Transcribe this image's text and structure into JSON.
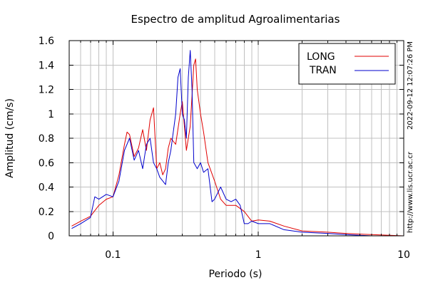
{
  "chart_data": {
    "type": "line",
    "title": "Espectro de amplitud Agroalimentarias",
    "xlabel": "Periodo (s)",
    "ylabel": "Amplitud (cm/s)",
    "x_scale": "log",
    "xlim": [
      0.05,
      10
    ],
    "ylim": [
      0,
      1.6
    ],
    "x_ticks": [
      0.1,
      1,
      10
    ],
    "x_tick_labels": [
      "0.1",
      "1",
      "10"
    ],
    "y_ticks": [
      0,
      0.2,
      0.4,
      0.6,
      0.8,
      1,
      1.2,
      1.4,
      1.6
    ],
    "y_tick_labels": [
      "0",
      "0.2",
      "0.4",
      "0.6",
      "0.8",
      "1",
      "1.2",
      "1.4",
      "1.6"
    ],
    "grid": true,
    "legend_position": "top-right",
    "timestamp": "2022-09-12 12:07:26 PM",
    "url": "http://www.lis.ucr.ac.cr",
    "series": [
      {
        "name": "LONG",
        "color": "#e00000",
        "x": [
          0.052,
          0.06,
          0.07,
          0.08,
          0.09,
          0.1,
          0.11,
          0.12,
          0.125,
          0.13,
          0.14,
          0.15,
          0.16,
          0.17,
          0.18,
          0.19,
          0.2,
          0.21,
          0.22,
          0.23,
          0.24,
          0.25,
          0.27,
          0.29,
          0.3,
          0.32,
          0.34,
          0.36,
          0.37,
          0.38,
          0.4,
          0.42,
          0.45,
          0.5,
          0.55,
          0.6,
          0.7,
          0.8,
          0.9,
          1.0,
          1.2,
          1.5,
          2.0,
          3.0,
          4.0,
          6.0,
          10.0
        ],
        "y": [
          0.08,
          0.12,
          0.16,
          0.25,
          0.3,
          0.32,
          0.5,
          0.75,
          0.85,
          0.83,
          0.65,
          0.72,
          0.87,
          0.7,
          0.95,
          1.05,
          0.55,
          0.6,
          0.5,
          0.55,
          0.72,
          0.8,
          0.75,
          1.0,
          1.1,
          0.7,
          0.9,
          1.4,
          1.45,
          1.2,
          1.0,
          0.85,
          0.6,
          0.45,
          0.3,
          0.25,
          0.25,
          0.2,
          0.12,
          0.13,
          0.12,
          0.08,
          0.04,
          0.03,
          0.02,
          0.01,
          0.0
        ]
      },
      {
        "name": "TRAN",
        "color": "#0000cc",
        "x": [
          0.052,
          0.06,
          0.07,
          0.075,
          0.08,
          0.09,
          0.1,
          0.11,
          0.12,
          0.13,
          0.14,
          0.15,
          0.16,
          0.17,
          0.18,
          0.19,
          0.2,
          0.21,
          0.22,
          0.23,
          0.24,
          0.25,
          0.27,
          0.28,
          0.29,
          0.3,
          0.31,
          0.32,
          0.33,
          0.34,
          0.35,
          0.36,
          0.38,
          0.4,
          0.42,
          0.45,
          0.48,
          0.5,
          0.55,
          0.6,
          0.65,
          0.7,
          0.75,
          0.8,
          0.85,
          0.9,
          1.0,
          1.2,
          1.5,
          2.0,
          3.0,
          4.0,
          6.0,
          10.0
        ],
        "y": [
          0.06,
          0.1,
          0.15,
          0.32,
          0.3,
          0.34,
          0.32,
          0.45,
          0.7,
          0.8,
          0.62,
          0.7,
          0.55,
          0.75,
          0.8,
          0.6,
          0.55,
          0.48,
          0.45,
          0.42,
          0.6,
          0.7,
          1.0,
          1.3,
          1.37,
          1.0,
          0.95,
          0.8,
          1.3,
          1.52,
          1.2,
          0.6,
          0.55,
          0.6,
          0.52,
          0.55,
          0.28,
          0.3,
          0.4,
          0.3,
          0.28,
          0.3,
          0.25,
          0.1,
          0.1,
          0.12,
          0.1,
          0.1,
          0.05,
          0.03,
          0.02,
          0.01,
          0.0,
          0.0
        ]
      }
    ]
  }
}
